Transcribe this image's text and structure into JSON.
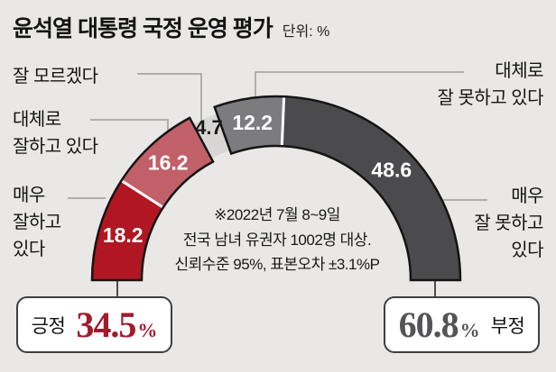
{
  "header": {
    "title": "윤석열 대통령 국정 운영 평가",
    "unit_label": "단위: %"
  },
  "note": "※2022년 7월 8~9일\n전국 남녀 유권자 1002명 대상.\n신뢰수준 95%, 표본오차 ±3.1%P",
  "callouts": {
    "left_top": "잘 모르겠다",
    "left_mid": "대체로\n잘하고 있다",
    "left_bottom": "매우\n잘하고\n있다",
    "right_top": "대체로\n잘 못하고 있다",
    "right_bottom": "매우\n잘 못하고\n있다"
  },
  "colors": {
    "background": "#e9e8e6",
    "outline": "#141414",
    "separator": "#ffffff",
    "leader_line": "#9c9c9c",
    "positive_accent": "#a31a2c",
    "negative_accent": "#545456"
  },
  "chart_data": {
    "type": "pie",
    "subtype": "semicircle-donut",
    "title": "윤석열 대통령 국정 운영 평가",
    "unit": "%",
    "segments": [
      {
        "label": "매우 잘하고 있다",
        "value": 18.2,
        "color": "#b01722",
        "text_color": "#ffffff",
        "group": "positive",
        "inset": false
      },
      {
        "label": "대체로 잘하고 있다",
        "value": 16.2,
        "color": "#c2606a",
        "text_color": "#ffffff",
        "group": "positive",
        "inset": false
      },
      {
        "label": "잘 모르겠다",
        "value": 4.7,
        "color": "#d7d6d4",
        "text_color": "#191919",
        "group": "neutral",
        "inset": true
      },
      {
        "label": "대체로 잘 못하고 있다",
        "value": 12.2,
        "color": "#7c7c7e",
        "text_color": "#ffffff",
        "group": "negative",
        "inset": false
      },
      {
        "label": "매우 잘 못하고 있다",
        "value": 48.6,
        "color": "#4b4b4d",
        "text_color": "#ffffff",
        "group": "negative",
        "inset": false
      }
    ],
    "totals": {
      "positive": {
        "label": "긍정",
        "value": 34.5,
        "unit": "%"
      },
      "negative": {
        "label": "부정",
        "value": 60.8,
        "unit": "%"
      }
    }
  }
}
